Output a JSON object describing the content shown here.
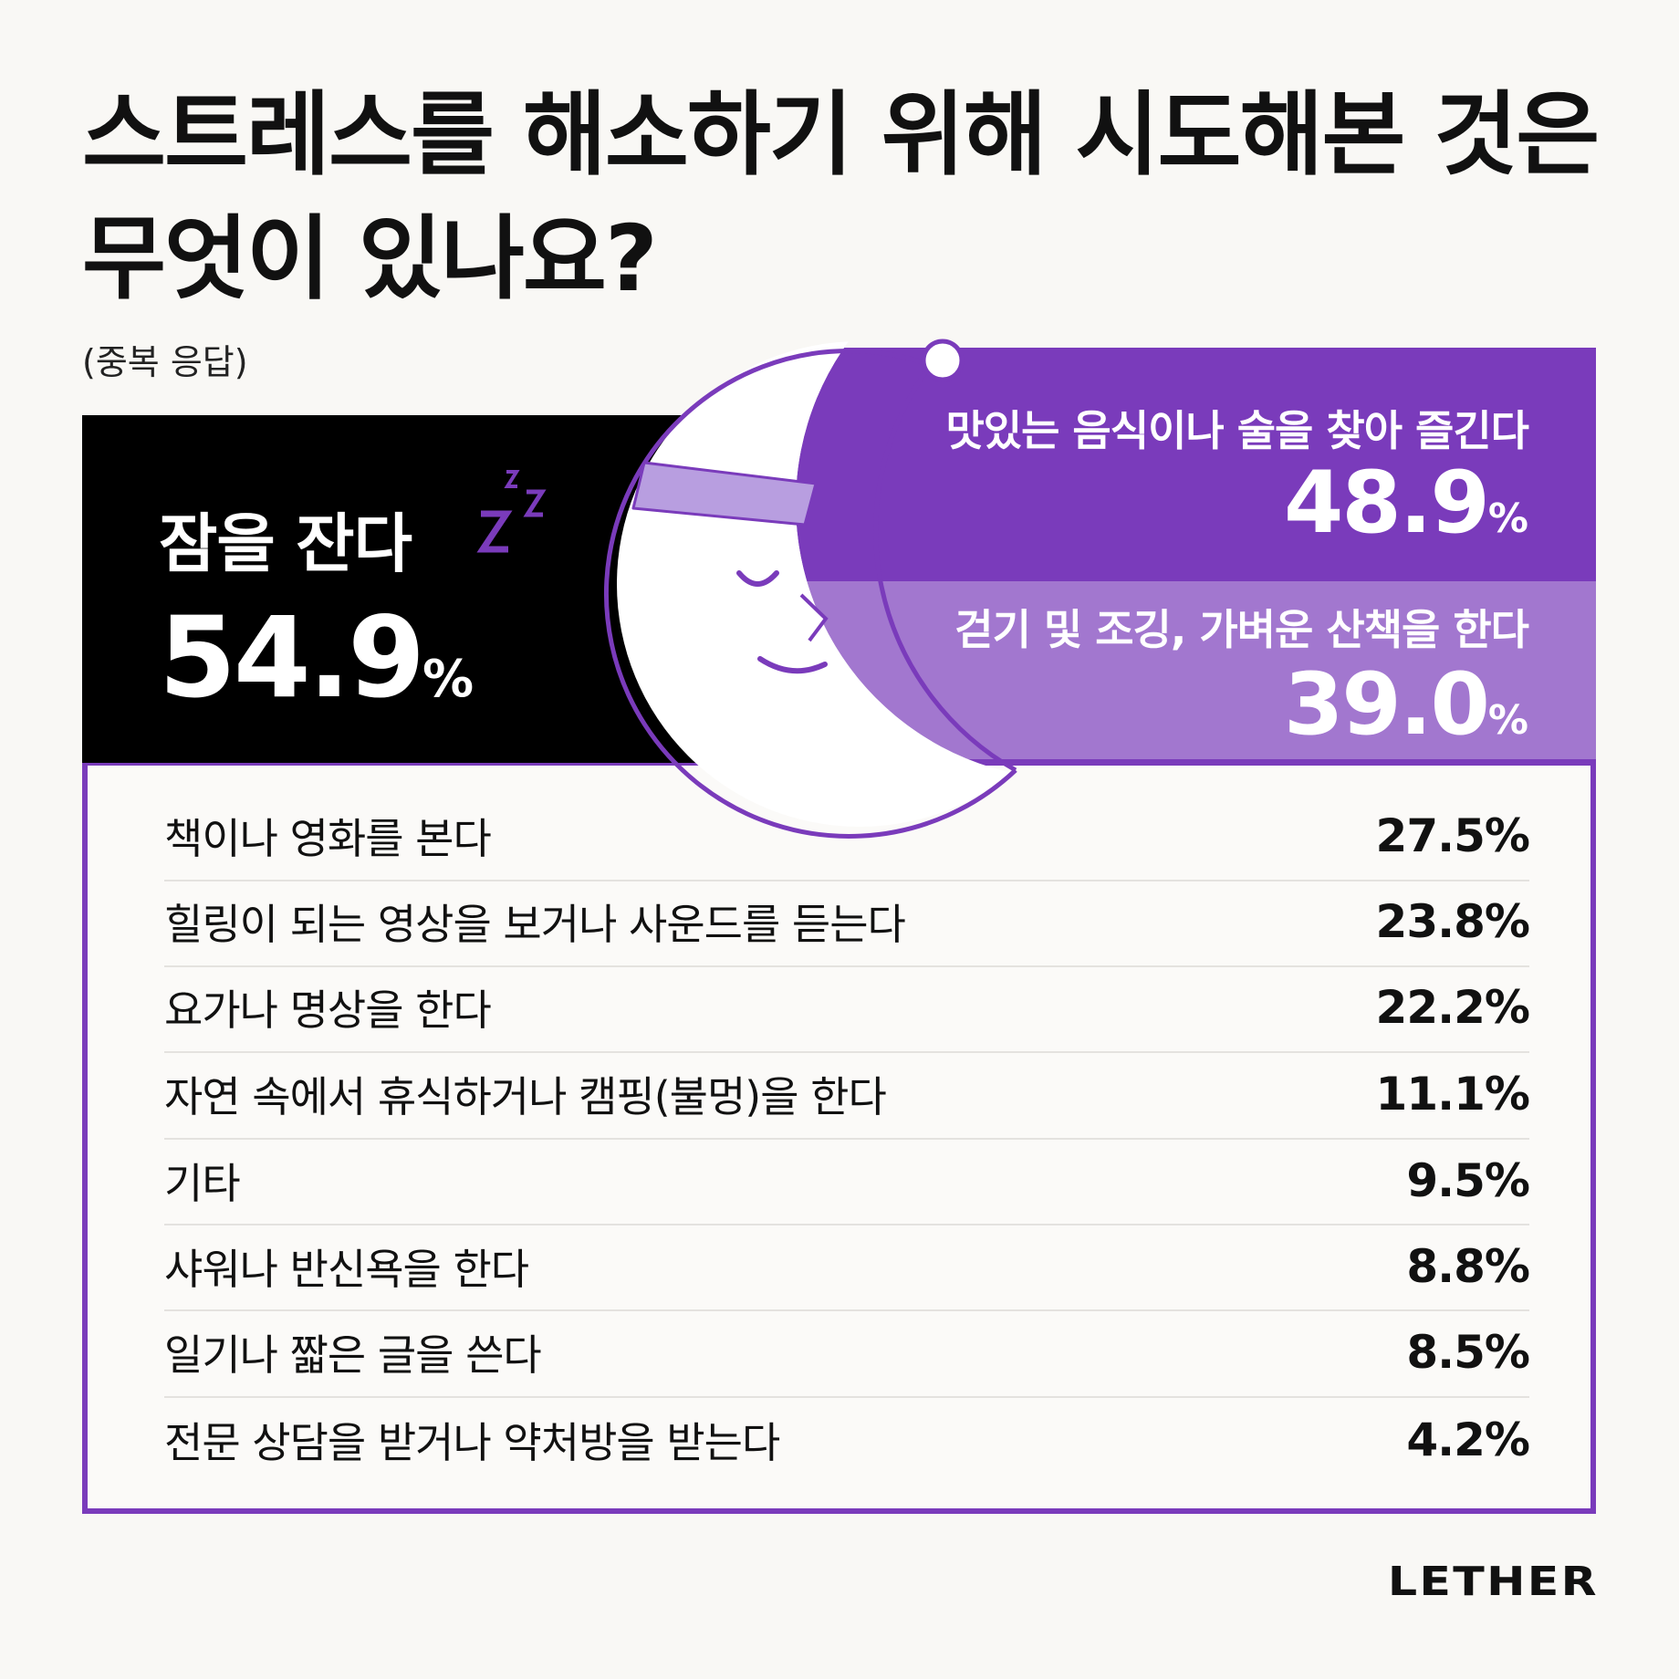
{
  "title": "스트레스를 해소하기 위해 시도해본 것은 무엇이 있나요?",
  "subtitle": "(중복 응답)",
  "colors": {
    "background": "#f9f8f5",
    "accent": "#7a3bbb",
    "accent_light": "#a277cf",
    "headband": "#b89ee0",
    "top_box": "#000000"
  },
  "top": [
    {
      "label": "잠을 잔다",
      "value": "54.9",
      "unit": "%",
      "icon": "zzz-sleep-icon"
    },
    {
      "label": "맛있는 음식이나 술을 찾아 즐긴다",
      "value": "48.9",
      "unit": "%"
    },
    {
      "label": "걷기 및 조깅, 가벼운 산책을 한다",
      "value": "39.0",
      "unit": "%"
    }
  ],
  "list": [
    {
      "label": "책이나 영화를 본다",
      "value": "27.5%"
    },
    {
      "label": "힐링이 되는 영상을 보거나 사운드를 듣는다",
      "value": "23.8%"
    },
    {
      "label": "요가나 명상을 한다",
      "value": "22.2%"
    },
    {
      "label": "자연 속에서 휴식하거나 캠핑(불멍)을 한다",
      "value": "11.1%"
    },
    {
      "label": "기타",
      "value": "9.5%"
    },
    {
      "label": "샤워나 반신욕을 한다",
      "value": "8.8%"
    },
    {
      "label": "일기나 짧은 글을 쓴다",
      "value": "8.5%"
    },
    {
      "label": "전문 상담을 받거나 약처방을 받는다",
      "value": "4.2%"
    }
  ],
  "logo": "LETHER"
}
